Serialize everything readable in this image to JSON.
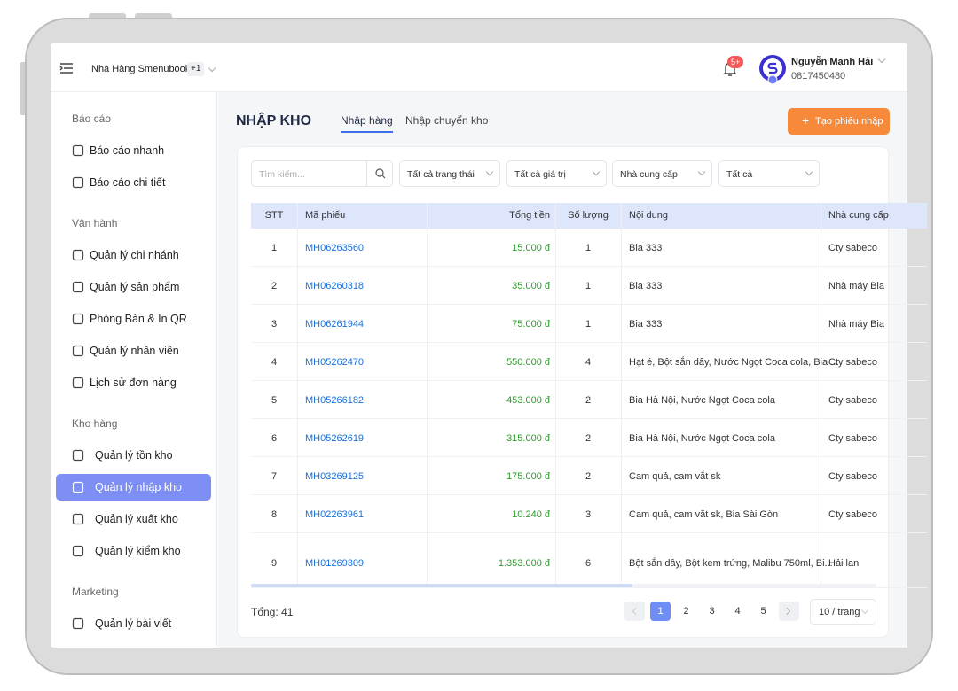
{
  "header": {
    "store": "Nhà Hàng Smenubook",
    "store_badge": "+1",
    "notif_badge": "5+",
    "user_name": "Nguyễn Mạnh Hải",
    "user_phone": "0817450480"
  },
  "sidebar": {
    "sections": [
      {
        "title": "Báo cáo",
        "items": [
          "Báo cáo nhanh",
          "Báo cáo chi tiết"
        ]
      },
      {
        "title": "Vận hành",
        "items": [
          "Quản lý chi nhánh",
          "Quản lý sản phẩm",
          "Phòng Bàn & In QR",
          "Quản lý nhân viên",
          "Lịch sử đơn hàng"
        ]
      },
      {
        "title": "Kho hàng",
        "items": [
          "Quản lý tồn kho",
          "Quản lý nhập kho",
          "Quản lý xuất kho",
          "Quản lý kiểm kho"
        ]
      },
      {
        "title": "Marketing",
        "items": [
          "Quản lý bài viết"
        ]
      }
    ]
  },
  "page": {
    "title": "NHẬP KHO",
    "tabs": [
      "Nhập hàng",
      "Nhập chuyển kho"
    ],
    "create_button": "Tạo phiếu nhập"
  },
  "filters": {
    "search_placeholder": "Tìm kiếm...",
    "selects": [
      "Tất cả trạng thái",
      "Tất cả giá trị",
      "Nhà cung cấp",
      "Tất cả"
    ]
  },
  "table": {
    "columns": [
      "STT",
      "Mã phiếu",
      "Tổng tiền",
      "Số lượng",
      "Nội dung",
      "Nhà cung cấp"
    ],
    "rows": [
      [
        1,
        "MH06263560",
        "15.000 đ",
        1,
        "Bia 333",
        "Cty sabeco"
      ],
      [
        2,
        "MH06260318",
        "35.000 đ",
        1,
        "Bia 333",
        "Nhà máy Bia"
      ],
      [
        3,
        "MH06261944",
        "75.000 đ",
        1,
        "Bia 333",
        "Nhà máy Bia"
      ],
      [
        4,
        "MH05262470",
        "550.000 đ",
        4,
        "Hạt é, Bột sắn dây, Nước Ngọt Coca cola, Bia ...",
        "Cty sabeco"
      ],
      [
        5,
        "MH05266182",
        "453.000 đ",
        2,
        "Bia Hà Nội, Nước Ngọt Coca cola",
        "Cty sabeco"
      ],
      [
        6,
        "MH05262619",
        "315.000 đ",
        2,
        "Bia Hà Nội, Nước Ngọt Coca cola",
        "Cty sabeco"
      ],
      [
        7,
        "MH03269125",
        "175.000 đ",
        2,
        "Cam quả, cam vắt sk",
        "Cty sabeco"
      ],
      [
        8,
        "MH02263961",
        "10.240 đ",
        3,
        "Cam quả, cam vắt sk, Bia Sài Gòn",
        "Cty sabeco"
      ],
      [
        9,
        "MH01269309",
        "1.353.000 đ",
        6,
        "Bột sắn dây, Bột kem trứng, Malibu 750ml, Bi...",
        "Hải lan"
      ]
    ]
  },
  "footer": {
    "total": "Tổng: 41",
    "pages": [
      1,
      2,
      3,
      4,
      5
    ],
    "page_size": "10 / trang"
  }
}
